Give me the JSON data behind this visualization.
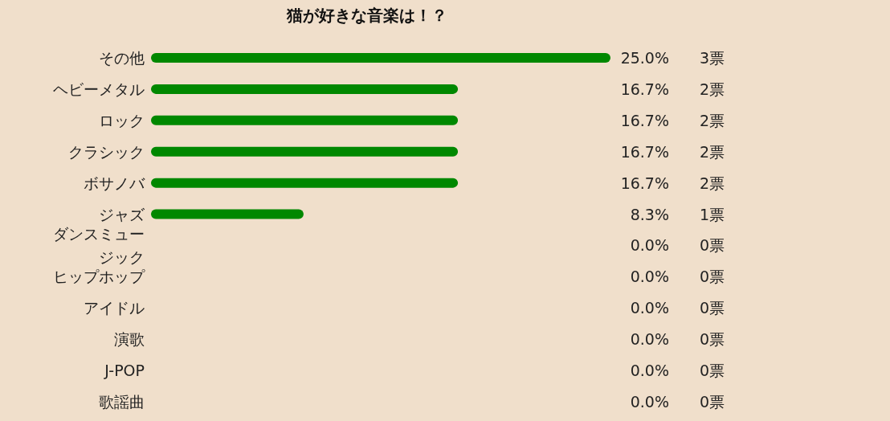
{
  "chart_data": {
    "type": "bar",
    "orientation": "horizontal",
    "title": "猫が好きな音楽は！？",
    "categories": [
      "その他",
      "ヘビーメタル",
      "ロック",
      "クラシック",
      "ボサノバ",
      "ジャズ",
      "ダンスミュージック",
      "ヒップホップ",
      "アイドル",
      "演歌",
      "J-POP",
      "歌謡曲"
    ],
    "values": [
      25.0,
      16.7,
      16.7,
      16.7,
      16.7,
      8.3,
      0.0,
      0.0,
      0.0,
      0.0,
      0.0,
      0.0
    ],
    "value_labels": [
      "25.0%",
      "16.7%",
      "16.7%",
      "16.7%",
      "16.7%",
      "8.3%",
      "0.0%",
      "0.0%",
      "0.0%",
      "0.0%",
      "0.0%",
      "0.0%"
    ],
    "color": "#008800",
    "xlim": [
      0,
      25
    ],
    "tick_labels": "y",
    "annotations": [
      "3票",
      "2票",
      "2票",
      "2票",
      "2票",
      "1票",
      "0票",
      "0票",
      "0票",
      "0票",
      "0票",
      "0票"
    ]
  }
}
